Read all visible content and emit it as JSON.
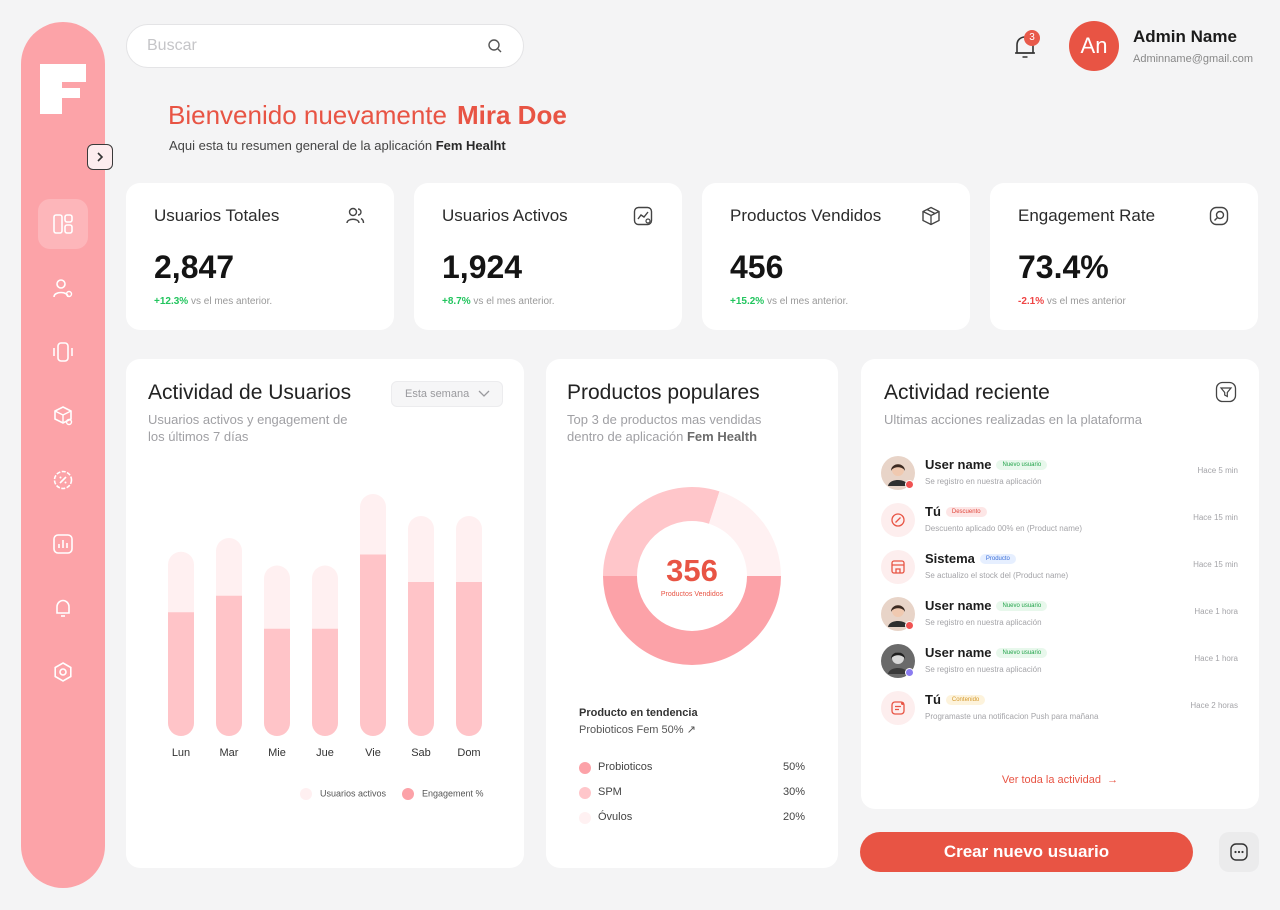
{
  "search": {
    "placeholder": "Buscar"
  },
  "header": {
    "notification_count": "3",
    "avatar_initials": "An",
    "admin_name": "Admin Name",
    "admin_email": "Adminname@gmail.com"
  },
  "welcome": {
    "greeting": "Bienvenido nuevamente",
    "user": "Mira Doe",
    "subtitle_prefix": "Aqui esta tu resumen general de la aplicación",
    "app_name": "Fem Healht"
  },
  "stats": [
    {
      "label": "Usuarios Totales",
      "value": "2,847",
      "delta": "+12.3%",
      "delta_text": "vs el mes anterior.",
      "icon": "users-icon"
    },
    {
      "label": "Usuarios Activos",
      "value": "1,924",
      "delta": "+8.7%",
      "delta_text": "vs el mes anterior.",
      "icon": "activity-chart-icon"
    },
    {
      "label": "Productos Vendidos",
      "value": "456",
      "delta": "+15.2%",
      "delta_text": "vs el mes anterior.",
      "icon": "box-icon"
    },
    {
      "label": "Engagement Rate",
      "value": "73.4%",
      "delta": "-2.1%",
      "delta_text": "vs el mes anterior",
      "icon": "engagement-icon"
    }
  ],
  "activity_chart": {
    "title": "Actividad de Usuarios",
    "subtitle_line1": "Usuarios activos y engagement de",
    "subtitle_line2": "los últimos 7 días",
    "range": "Esta semana",
    "legend_active": "Usuarios activos",
    "legend_engagement": "Engagement %"
  },
  "chart_data": {
    "type": "bar",
    "categories": [
      "Lun",
      "Mar",
      "Mie",
      "Jue",
      "Vie",
      "Sab",
      "Dom"
    ],
    "series": [
      {
        "name": "Usuarios activos",
        "values": [
          67,
          72,
          62,
          62,
          88,
          80,
          80
        ]
      },
      {
        "name": "Engagement %",
        "values": [
          45,
          51,
          39,
          39,
          66,
          56,
          56
        ]
      }
    ],
    "ylim": [
      0,
      100
    ],
    "legend": "bottom",
    "grid": false,
    "colors": {
      "Usuarios activos": "#fff0f1",
      "Engagement %": "#ffc4c8"
    }
  },
  "popular": {
    "title": "Productos populares",
    "subtitle_line1": "Top 3 de productos mas vendidas",
    "subtitle_line2": "dentro de aplicación",
    "app_name": "Fem Health",
    "center_value": "356",
    "center_label": "Productos Vendidos",
    "trend_title": "Producto en tendencia",
    "trend_value": "Probioticos Fem 50%",
    "products": [
      {
        "name": "Probioticos",
        "pct": "50%",
        "share": 50,
        "color": "#fca2a8"
      },
      {
        "name": "SPM",
        "pct": "30%",
        "share": 30,
        "color": "#ffc6ca"
      },
      {
        "name": "Óvulos",
        "pct": "20%",
        "share": 20,
        "color": "#fff1f2"
      }
    ]
  },
  "recent": {
    "title": "Actividad reciente",
    "subtitle": "Ultimas acciones realizadas en la plataforma",
    "see_all": "Ver toda la actividad",
    "items": [
      {
        "name": "User name",
        "badge": "Nuevo usuario",
        "badge_type": "green",
        "desc": "Se registro en nuestra aplicación",
        "time": "Hace 5 min",
        "kind": "photo",
        "status": "#f05252"
      },
      {
        "name": "Tú",
        "badge": "Descuento",
        "badge_type": "red",
        "desc": "Descuento aplicado 00% en (Product name)",
        "time": "Hace 15 min",
        "kind": "discount-icon"
      },
      {
        "name": "Sistema",
        "badge": "Producto",
        "badge_type": "blue",
        "desc": "Se actualizo el stock del (Product name)",
        "time": "Hace 15 min",
        "kind": "store-icon"
      },
      {
        "name": "User name",
        "badge": "Nuevo usuario",
        "badge_type": "green",
        "desc": "Se registro en nuestra aplicación",
        "time": "Hace 1 hora",
        "kind": "photo",
        "status": "#f05252"
      },
      {
        "name": "User name",
        "badge": "Nuevo usuario",
        "badge_type": "green",
        "desc": "Se registro en nuestra aplicación",
        "time": "Hace 1 hora",
        "kind": "photo-dark",
        "status": "#8b7cf0"
      },
      {
        "name": "Tú",
        "badge": "Contenido",
        "badge_type": "yellow",
        "desc": "Programaste una notificacion Push para mañana",
        "time": "Hace 2 horas",
        "kind": "message-icon"
      }
    ]
  },
  "actions": {
    "create_user": "Crear nuevo usuario"
  },
  "colors": {
    "accent": "#e85444",
    "sidebar": "#fca3a8",
    "bar_light": "#fff0f1",
    "bar_dark": "#ffc4c8"
  }
}
